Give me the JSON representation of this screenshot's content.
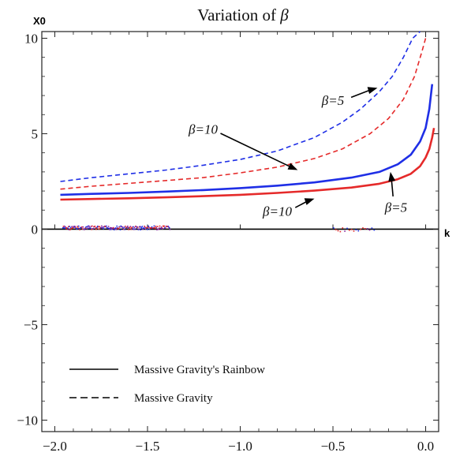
{
  "chart_data": {
    "type": "line",
    "title": "Variation of β",
    "xlabel": "k",
    "ylabel": "X0",
    "xlim": [
      -2.0,
      0.05
    ],
    "ylim": [
      -10.5,
      10.5
    ],
    "x_ticks": [
      "-2.0",
      "-1.5",
      "-1.0",
      "-0.5",
      "0.0"
    ],
    "y_ticks": [
      "-10",
      "-5",
      "0",
      "5",
      "10"
    ],
    "grid": false,
    "legend_position": "bottom-left",
    "legend": [
      {
        "label": "Massive Gravity's Rainbow",
        "style": "solid"
      },
      {
        "label": "Massive Gravity",
        "style": "dashed"
      }
    ],
    "series": [
      {
        "color": "#1f2fe6",
        "style": "dashed",
        "x": [
          -1.97,
          -1.8,
          -1.6,
          -1.4,
          -1.2,
          -1.0,
          -0.8,
          -0.6,
          -0.45,
          -0.35,
          -0.25,
          -0.18,
          -0.12,
          -0.07,
          -0.03
        ],
        "y": [
          2.5,
          2.7,
          2.9,
          3.1,
          3.35,
          3.65,
          4.1,
          4.8,
          5.6,
          6.3,
          7.2,
          8.0,
          9.0,
          10.0,
          10.5
        ]
      },
      {
        "color": "#e52a2a",
        "style": "dashed",
        "x": [
          -1.97,
          -1.8,
          -1.6,
          -1.4,
          -1.2,
          -1.0,
          -0.8,
          -0.6,
          -0.45,
          -0.3,
          -0.2,
          -0.12,
          -0.06,
          -0.02,
          0.0
        ],
        "y": [
          2.1,
          2.25,
          2.4,
          2.55,
          2.7,
          2.95,
          3.25,
          3.7,
          4.2,
          5.0,
          5.8,
          6.8,
          8.0,
          9.3,
          10.0
        ]
      },
      {
        "color": "#1f2fe6",
        "style": "solid",
        "x": [
          -1.97,
          -1.8,
          -1.6,
          -1.4,
          -1.2,
          -1.0,
          -0.8,
          -0.6,
          -0.4,
          -0.25,
          -0.15,
          -0.08,
          -0.03,
          0.0,
          0.02,
          0.035
        ],
        "y": [
          1.8,
          1.85,
          1.9,
          1.97,
          2.05,
          2.15,
          2.28,
          2.45,
          2.7,
          3.0,
          3.4,
          3.9,
          4.6,
          5.3,
          6.3,
          7.6
        ]
      },
      {
        "color": "#e52a2a",
        "style": "solid",
        "x": [
          -1.97,
          -1.8,
          -1.6,
          -1.4,
          -1.2,
          -1.0,
          -0.8,
          -0.6,
          -0.4,
          -0.25,
          -0.15,
          -0.08,
          -0.03,
          0.0,
          0.02,
          0.035,
          0.045
        ],
        "y": [
          1.55,
          1.58,
          1.62,
          1.67,
          1.73,
          1.8,
          1.9,
          2.02,
          2.18,
          2.38,
          2.62,
          2.9,
          3.3,
          3.75,
          4.2,
          4.8,
          5.3
        ]
      }
    ],
    "scatter_noise": [
      {
        "x_range": [
          -1.96,
          -1.38
        ],
        "y": 0.1,
        "color": "#8a2aa0"
      },
      {
        "x_range": [
          -0.5,
          -0.28
        ],
        "y": 0.0,
        "color": "#8a2aa0"
      }
    ],
    "annotations": [
      {
        "text": "β=5",
        "text_x": -0.5,
        "text_y": 6.5,
        "arrow_to_x": -0.26,
        "arrow_to_y": 7.4
      },
      {
        "text": "β=10",
        "text_x": -1.2,
        "text_y": 5.0,
        "arrow_to_x": -0.69,
        "arrow_to_y": 3.1
      },
      {
        "text": "β=10",
        "text_x": -0.8,
        "text_y": 0.7,
        "arrow_to_x": -0.6,
        "arrow_to_y": 1.6
      },
      {
        "text": "β=5",
        "text_x": -0.16,
        "text_y": 0.9,
        "arrow_to_x": -0.19,
        "arrow_to_y": 3.0
      }
    ]
  }
}
